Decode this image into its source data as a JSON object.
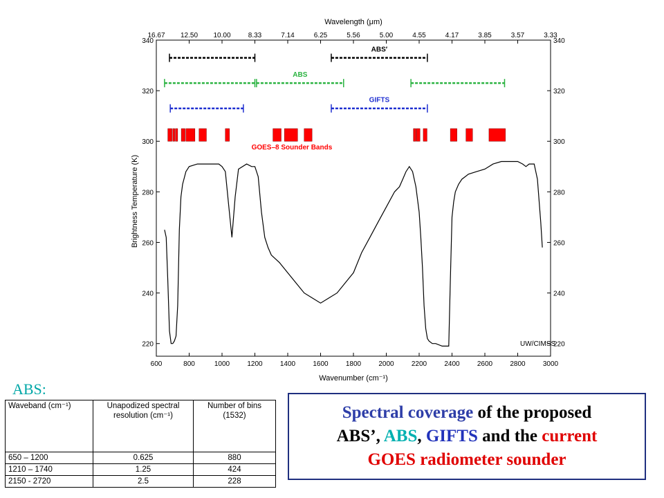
{
  "chart_data": {
    "type": "line",
    "title": "",
    "xlabel": "Wavenumber (cm⁻¹)",
    "x2label": "Wavelength (μm)",
    "ylabel": "Brightness Temperature (K)",
    "xlim": [
      600,
      3000
    ],
    "ylim": [
      215,
      340
    ],
    "xticks": [
      600,
      800,
      1000,
      1200,
      1400,
      1600,
      1800,
      2000,
      2200,
      2400,
      2600,
      2800,
      3000
    ],
    "yticks": [
      220,
      240,
      260,
      280,
      300,
      320,
      340
    ],
    "top_ticks": [
      {
        "wn": 600,
        "label": "16.67"
      },
      {
        "wn": 800,
        "label": "12.50"
      },
      {
        "wn": 1000,
        "label": "10.00"
      },
      {
        "wn": 1200,
        "label": "8.33"
      },
      {
        "wn": 1400,
        "label": "7.14"
      },
      {
        "wn": 1600,
        "label": "6.25"
      },
      {
        "wn": 1800,
        "label": "5.56"
      },
      {
        "wn": 2000,
        "label": "5.00"
      },
      {
        "wn": 2200,
        "label": "4.55"
      },
      {
        "wn": 2400,
        "label": "4.17"
      },
      {
        "wn": 2600,
        "label": "3.85"
      },
      {
        "wn": 2800,
        "label": "3.57"
      },
      {
        "wn": 3000,
        "label": "3.33"
      }
    ],
    "spectrum": {
      "x": [
        650,
        660,
        670,
        680,
        690,
        700,
        710,
        720,
        730,
        740,
        750,
        760,
        780,
        800,
        850,
        900,
        950,
        980,
        1000,
        1020,
        1040,
        1060,
        1080,
        1100,
        1150,
        1180,
        1200,
        1220,
        1240,
        1260,
        1280,
        1300,
        1350,
        1400,
        1450,
        1500,
        1550,
        1600,
        1650,
        1700,
        1750,
        1800,
        1850,
        1900,
        1950,
        2000,
        2050,
        2080,
        2100,
        2120,
        2140,
        2160,
        2180,
        2200,
        2210,
        2220,
        2230,
        2240,
        2250,
        2260,
        2280,
        2300,
        2340,
        2360,
        2380,
        2390,
        2400,
        2410,
        2420,
        2440,
        2460,
        2500,
        2550,
        2600,
        2650,
        2700,
        2750,
        2800,
        2830,
        2850,
        2870,
        2900,
        2920,
        2940,
        2950
      ],
      "y": [
        265,
        262,
        245,
        225,
        220,
        220,
        221,
        223,
        235,
        265,
        278,
        283,
        288,
        290,
        291,
        291,
        291,
        291,
        290,
        288,
        275,
        262,
        278,
        289,
        291,
        290,
        290,
        286,
        272,
        262,
        258,
        255,
        252,
        248,
        244,
        240,
        238,
        236,
        238,
        240,
        244,
        248,
        256,
        262,
        268,
        274,
        280,
        282,
        285,
        288,
        290,
        288,
        282,
        272,
        262,
        250,
        235,
        226,
        222,
        221,
        220,
        220,
        219,
        219,
        219,
        245,
        270,
        276,
        280,
        283,
        285,
        287,
        288,
        289,
        291,
        292,
        292,
        292,
        291,
        290,
        291,
        291,
        285,
        268,
        258
      ]
    },
    "coverage_bars": [
      {
        "name": "ABS′",
        "color": "#000000",
        "y": 333,
        "segments": [
          [
            680,
            1200
          ],
          [
            1665,
            2250
          ]
        ]
      },
      {
        "name": "ABS",
        "color": "#2ab340",
        "y": 323,
        "segments": [
          [
            650,
            1200
          ],
          [
            1210,
            1740
          ],
          [
            2150,
            2720
          ]
        ]
      },
      {
        "name": "GIFTS",
        "color": "#1f2fd0",
        "y": 313,
        "segments": [
          [
            685,
            1130
          ],
          [
            1665,
            2250
          ]
        ]
      }
    ],
    "goes_bands": {
      "name": "GOES–8 Sounder Bands",
      "color": "#ff0000",
      "y_low": 300,
      "y_high": 305,
      "bands": [
        [
          670,
          695
        ],
        [
          700,
          712
        ],
        [
          716,
          730
        ],
        [
          752,
          775
        ],
        [
          780,
          835
        ],
        [
          860,
          905
        ],
        [
          1020,
          1045
        ],
        [
          1310,
          1360
        ],
        [
          1380,
          1460
        ],
        [
          1500,
          1548
        ],
        [
          2165,
          2180
        ],
        [
          2183,
          2205
        ],
        [
          2225,
          2248
        ],
        [
          2390,
          2430
        ],
        [
          2485,
          2525
        ],
        [
          2625,
          2725
        ]
      ]
    },
    "annotation": "UW/CIMSS",
    "grid": false
  },
  "abs_label": "ABS:",
  "abs_table": {
    "headers": [
      "Waveband (cm⁻¹)",
      "Unapodized spectral resolution (cm⁻¹)",
      "Number of bins (1532)"
    ],
    "rows": [
      [
        "650 – 1200",
        "0.625",
        "880"
      ],
      [
        "1210 – 1740",
        "1.25",
        "424"
      ],
      [
        "2150 - 2720",
        "2.5",
        "228"
      ]
    ]
  },
  "caption": {
    "part1": "Spectral coverage",
    "part2": " of the proposed",
    "part3": "ABS’, ",
    "part4": "ABS",
    "part5": ", ",
    "part6": "GIFTS",
    "part7": " and the ",
    "part8": "current",
    "part9": "GOES radiometer sounder"
  },
  "colors": {
    "abs_heading": "#00a7a7",
    "caption_border": "#1f2f7f"
  }
}
